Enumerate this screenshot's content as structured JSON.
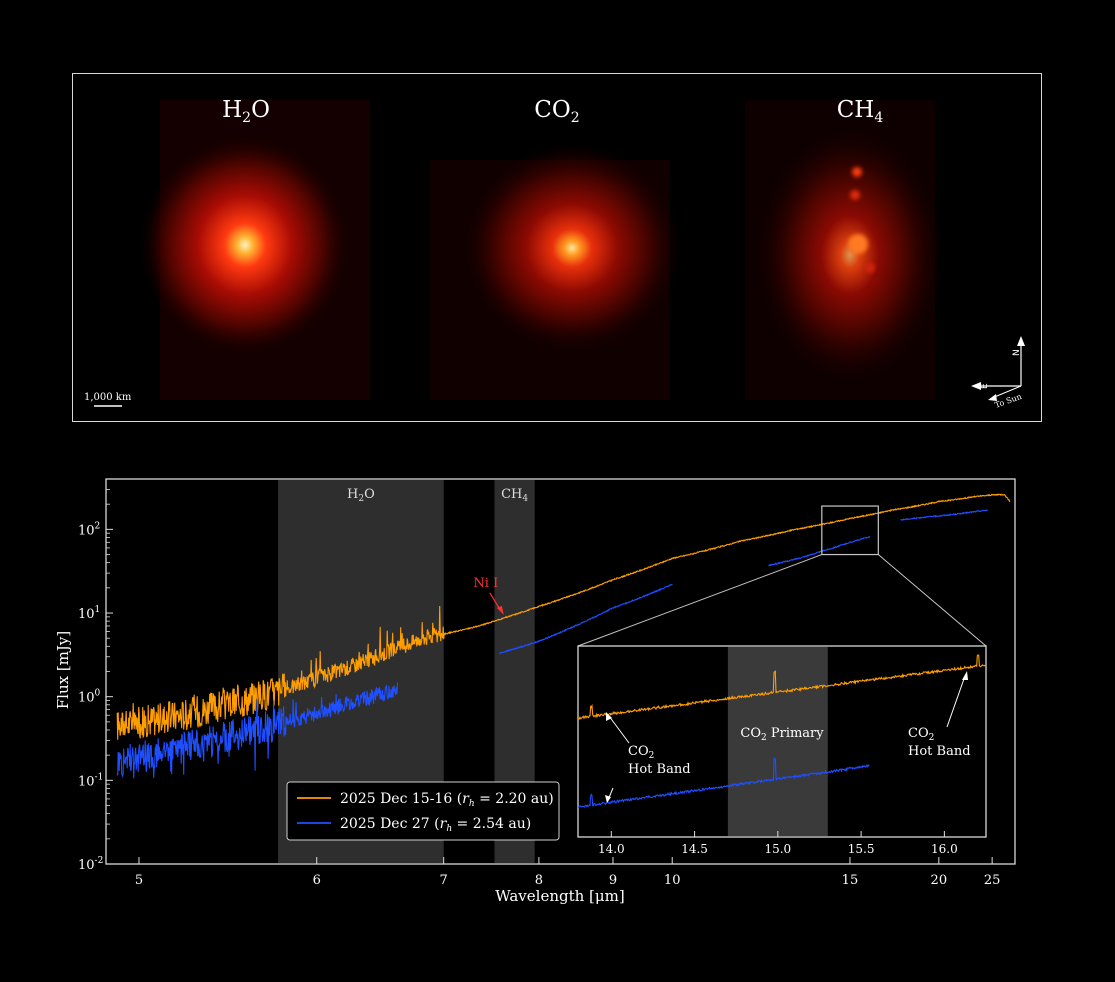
{
  "top_panel": {
    "maps": [
      {
        "label": "H",
        "sub": "2",
        "tail": "O"
      },
      {
        "label": "CO",
        "sub": "2",
        "tail": ""
      },
      {
        "label": "CH",
        "sub": "4",
        "tail": ""
      }
    ],
    "scale_bar_label": "1,000 km",
    "compass": {
      "north": "N",
      "east": "E",
      "sun": "To Sun"
    }
  },
  "chart_data": [
    {
      "type": "line",
      "ylabel": "Flux [mJy]",
      "xlabel": "Wavelength [μm]",
      "x_scale": "reciprocal",
      "y_scale": "log",
      "xlim": [
        4.85,
        28
      ],
      "ylim": [
        0.01,
        400
      ],
      "x_ticks": [
        5,
        6,
        7,
        8,
        9,
        10,
        15,
        20,
        25
      ],
      "y_ticks": [
        {
          "value": 0.01,
          "label": "10",
          "exp": "-2"
        },
        {
          "value": 0.1,
          "label": "10",
          "exp": "-1"
        },
        {
          "value": 1,
          "label": "10",
          "exp": "0"
        },
        {
          "value": 10,
          "label": "10",
          "exp": "1"
        },
        {
          "value": 100,
          "label": "10",
          "exp": "2"
        }
      ],
      "shaded_bands": [
        {
          "label": "H",
          "sub": "2",
          "tail": "O",
          "x": [
            5.75,
            7.0
          ]
        },
        {
          "label": "CH",
          "sub": "4",
          "tail": "",
          "x": [
            7.5,
            7.95
          ]
        }
      ],
      "annotation": {
        "text": "Ni I",
        "x": 7.6,
        "y": 9.0,
        "color": "#ff3030"
      },
      "zoom_box": {
        "x": [
          13.9,
          16.3
        ],
        "y": [
          50,
          190
        ]
      },
      "legend": {
        "placement": "lower-center",
        "entries": [
          {
            "text": "2025 Dec 15-16 (",
            "math_r": "r",
            "math_sub": "h",
            "math_eq": " = 2.20 au)",
            "color": "#ff9e00"
          },
          {
            "text": "2025 Dec 27 (",
            "math_r": "r",
            "math_sub": "h",
            "math_eq": " = 2.54 au)",
            "color": "#1f4fff"
          }
        ]
      },
      "series": [
        {
          "color": "#ff9e00",
          "segments": [
            {
              "x": [
                4.9,
                5.2,
                5.5,
                5.8,
                6.1,
                6.4,
                6.6,
                6.8,
                7.0,
                7.3,
                7.6,
                8.0,
                9.0,
                10.0,
                11.5,
                13.0,
                15.0,
                17.0,
                20.0,
                23.0,
                25.0,
                26.5,
                27.3
              ],
              "y": [
                0.45,
                0.6,
                0.85,
                1.25,
                1.9,
                2.9,
                3.8,
                5.0,
                5.6,
                6.8,
                8.7,
                12,
                25,
                45,
                73,
                100,
                135,
                170,
                215,
                245,
                258,
                262,
                215
              ]
            }
          ]
        },
        {
          "color": "#1f4fff",
          "segments": [
            {
              "x": [
                4.9,
                5.2,
                5.5,
                5.8,
                6.1,
                6.4,
                6.6
              ],
              "y": [
                0.17,
                0.24,
                0.35,
                0.5,
                0.72,
                1.0,
                1.22
              ]
            },
            {
              "x": [
                7.55,
                8.0,
                9.0,
                10.0
              ],
              "y": [
                3.3,
                4.6,
                11.5,
                22
              ]
            },
            {
              "x": [
                12.2,
                13.0,
                14.0,
                15.0,
                15.9
              ],
              "y": [
                37,
                44,
                56,
                70,
                82
              ]
            },
            {
              "x": [
                17.5,
                19.0,
                21.0,
                23.0,
                24.5
              ],
              "y": [
                130,
                140,
                150,
                162,
                170
              ]
            }
          ]
        }
      ]
    },
    {
      "type": "line",
      "name": "inset",
      "xlim": [
        13.8,
        16.25
      ],
      "x_ticks": [
        14.0,
        14.5,
        15.0,
        15.5,
        16.0
      ],
      "shaded_band": {
        "x": [
          14.7,
          15.3
        ]
      },
      "annotations": [
        {
          "lines": [
            "CO",
            "Hot Band"
          ],
          "sub": "2",
          "arrow_x": 13.88,
          "side": "left"
        },
        {
          "lines": [
            "CO",
            " Primary"
          ],
          "sub": "2",
          "inline": true
        },
        {
          "lines": [
            "CO",
            "Hot Band"
          ],
          "sub": "2",
          "arrow_x": 16.2,
          "side": "right"
        }
      ],
      "series": [
        {
          "color": "#ff9e00",
          "x": [
            13.8,
            14.2,
            14.6,
            15.0,
            15.4,
            15.8,
            16.25
          ],
          "y": [
            0.59,
            0.48,
            0.38,
            0.28,
            0.2,
            0.12,
            0.05
          ],
          "spike_x": [
            13.88,
            14.98,
            16.2
          ]
        },
        {
          "color": "#1f4fff",
          "x": [
            13.8,
            14.2,
            14.6,
            15.0,
            15.4,
            15.55
          ],
          "y": [
            0.0,
            -0.08,
            -0.17,
            -0.25,
            -0.32,
            -0.35
          ],
          "spike_x": [
            13.88,
            14.98
          ]
        }
      ]
    }
  ]
}
